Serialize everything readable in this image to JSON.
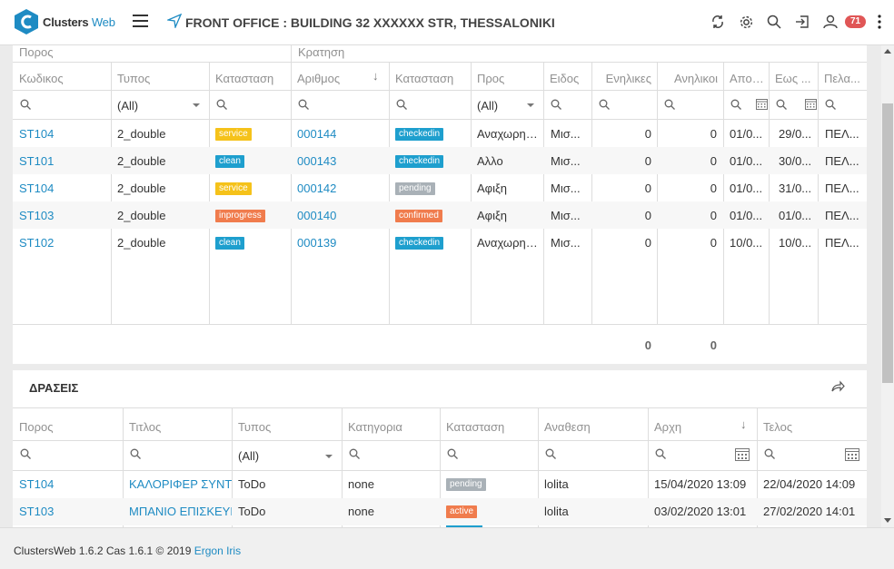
{
  "app": {
    "name_a": "Clusters",
    "name_b": "Web"
  },
  "header": {
    "title": "FRONT OFFICE : BUILDING 32 XXXXXX STR, THESSALONIKI",
    "notifications": "71"
  },
  "colors": {
    "accent": "#1e8bc3",
    "service": "#f5c21a",
    "clean": "#1e9fce",
    "inprogress": "#f07c4d",
    "checkedin": "#1e9fce",
    "pending": "#a9b1b7",
    "confirmed": "#f07c4d",
    "active": "#f07c4d"
  },
  "bookings": {
    "group_headers": [
      "Πορος",
      "Κρατηση"
    ],
    "columns": [
      "Κωδικος",
      "Τυπος",
      "Κατασταση",
      "Αριθμος",
      "Κατασταση",
      "Προς",
      "Ειδος",
      "Ενηλικες",
      "Ανηλικοι",
      "Απο ...",
      "Εως ...",
      "Πελα..."
    ],
    "filters": {
      "type": "(All)",
      "to": "(All)"
    },
    "rows": [
      {
        "code": "ST104",
        "type": "2_double",
        "room_status": "service",
        "number": "000144",
        "status": "checkedin",
        "to": "Αναχωρησ...",
        "kind": "Μισ...",
        "adults": "0",
        "minors": "0",
        "from": "01/0...",
        "until": "29/0...",
        "customer": "ΠΕΛ..."
      },
      {
        "code": "ST101",
        "type": "2_double",
        "room_status": "clean",
        "number": "000143",
        "status": "checkedin",
        "to": "Αλλο",
        "kind": "Μισ...",
        "adults": "0",
        "minors": "0",
        "from": "01/0...",
        "until": "30/0...",
        "customer": "ΠΕΛ..."
      },
      {
        "code": "ST104",
        "type": "2_double",
        "room_status": "service",
        "number": "000142",
        "status": "pending",
        "to": "Αφιξη",
        "kind": "Μισ...",
        "adults": "0",
        "minors": "0",
        "from": "01/0...",
        "until": "31/0...",
        "customer": "ΠΕΛ..."
      },
      {
        "code": "ST103",
        "type": "2_double",
        "room_status": "inprogress",
        "number": "000140",
        "status": "confirmed",
        "to": "Αφιξη",
        "kind": "Μισ...",
        "adults": "0",
        "minors": "0",
        "from": "01/0...",
        "until": "01/0...",
        "customer": "ΠΕΛ..."
      },
      {
        "code": "ST102",
        "type": "2_double",
        "room_status": "clean",
        "number": "000139",
        "status": "checkedin",
        "to": "Αναχωρησ...",
        "kind": "Μισ...",
        "adults": "0",
        "minors": "0",
        "from": "10/0...",
        "until": "10/0...",
        "customer": "ΠΕΛ..."
      }
    ],
    "totals": {
      "adults": "0",
      "minors": "0"
    }
  },
  "actions": {
    "title": "ΔΡΑΣΕΙΣ",
    "columns": [
      "Πορος",
      "Τιτλος",
      "Τυπος",
      "Κατηγορια",
      "Κατασταση",
      "Αναθεση",
      "Αρχη",
      "Τελος"
    ],
    "filters": {
      "type": "(All)"
    },
    "rows": [
      {
        "room": "ST104",
        "title": "ΚΑΛΟΡΙΦΕΡ ΣΥΝΤΗΡ",
        "type": "ToDo",
        "category": "none",
        "status": "pending",
        "assignee": "lolita",
        "start": "15/04/2020 13:09",
        "end": "22/04/2020 14:09"
      },
      {
        "room": "ST103",
        "title": "ΜΠΑΝΙΟ ΕΠΙΣΚΕΥΗ",
        "type": "ToDo",
        "category": "none",
        "status": "active",
        "assignee": "lolita",
        "start": "03/02/2020 13:01",
        "end": "27/02/2020 14:01"
      }
    ]
  },
  "footer": {
    "text": "ClustersWeb 1.6.2 Cas 1.6.1 © 2019 ",
    "link": "Ergon Iris"
  }
}
